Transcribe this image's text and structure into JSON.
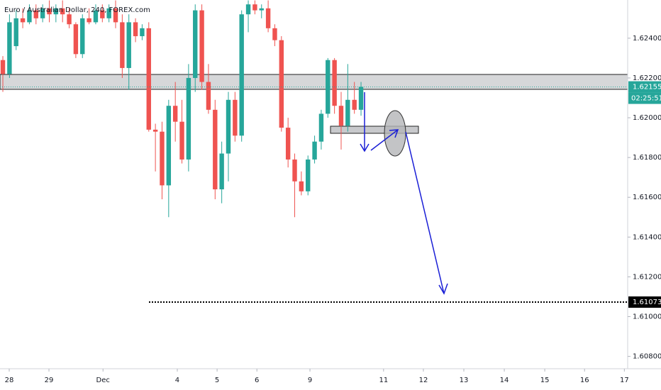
{
  "chart_data": {
    "type": "candlestick",
    "title": "Euro / Australian Dollar, 240, FOREX.com",
    "up_color": "#26a69a",
    "down_color": "#ef5350",
    "x": [
      0,
      1,
      2,
      3,
      4,
      5,
      6,
      7,
      8,
      9,
      10,
      11,
      12,
      13,
      14,
      15,
      16,
      17,
      18,
      19,
      20,
      21,
      22,
      23,
      24,
      25,
      26,
      27,
      28,
      29,
      30,
      31,
      32,
      33,
      34,
      35,
      36,
      37,
      38,
      39,
      40,
      41,
      42,
      43,
      44,
      45,
      46,
      47,
      48,
      49,
      50,
      51,
      52,
      53,
      54
    ],
    "open": [
      1.6229,
      1.6222,
      1.6236,
      1.625,
      1.6248,
      1.6254,
      1.625,
      1.6255,
      1.6252,
      1.6255,
      1.6252,
      1.6247,
      1.6232,
      1.625,
      1.6248,
      1.6254,
      1.625,
      1.6255,
      1.6248,
      1.6225,
      1.6248,
      1.6241,
      1.6245,
      1.6194,
      1.6193,
      1.6166,
      1.6206,
      1.6198,
      1.6179,
      1.622,
      1.6254,
      1.6218,
      1.6204,
      1.6164,
      1.6182,
      1.6209,
      1.6191,
      1.6252,
      1.6257,
      1.6254,
      1.6255,
      1.6245,
      1.6239,
      1.6195,
      1.6179,
      1.6168,
      1.6163,
      1.6179,
      1.6188,
      1.6202,
      1.6229,
      1.6206,
      1.6196,
      1.6209,
      1.6204
    ],
    "high": [
      1.6231,
      1.6252,
      1.6254,
      1.6255,
      1.6257,
      1.6257,
      1.6257,
      1.6259,
      1.6257,
      1.6259,
      1.6255,
      1.6248,
      1.6252,
      1.6255,
      1.6257,
      1.6257,
      1.6257,
      1.6259,
      1.6252,
      1.6252,
      1.625,
      1.6247,
      1.6248,
      1.6197,
      1.6198,
      1.6209,
      1.6218,
      1.6209,
      1.6227,
      1.6257,
      1.6257,
      1.6227,
      1.6209,
      1.6188,
      1.6213,
      1.6213,
      1.6254,
      1.6259,
      1.6259,
      1.6257,
      1.6259,
      1.6247,
      1.6241,
      1.62,
      1.6182,
      1.6173,
      1.6181,
      1.6191,
      1.6204,
      1.623,
      1.623,
      1.6213,
      1.6227,
      1.6218,
      1.6218
    ],
    "low": [
      1.6213,
      1.622,
      1.6234,
      1.6245,
      1.6247,
      1.6247,
      1.6248,
      1.6248,
      1.6248,
      1.6248,
      1.6245,
      1.623,
      1.623,
      1.6247,
      1.6247,
      1.6248,
      1.6248,
      1.6245,
      1.622,
      1.6214,
      1.6238,
      1.6239,
      1.6193,
      1.6173,
      1.6159,
      1.615,
      1.6188,
      1.6177,
      1.6173,
      1.6213,
      1.6214,
      1.6202,
      1.6159,
      1.6157,
      1.6168,
      1.6188,
      1.6188,
      1.6243,
      1.6252,
      1.625,
      1.6243,
      1.6236,
      1.6193,
      1.6175,
      1.615,
      1.6161,
      1.6161,
      1.6177,
      1.6184,
      1.62,
      1.6202,
      1.6184,
      1.6193,
      1.6202,
      1.6201
    ],
    "close": [
      1.6222,
      1.6248,
      1.625,
      1.6248,
      1.6254,
      1.625,
      1.6255,
      1.6252,
      1.6255,
      1.6252,
      1.6247,
      1.6232,
      1.625,
      1.6248,
      1.6254,
      1.625,
      1.6255,
      1.6248,
      1.6225,
      1.6248,
      1.6241,
      1.6245,
      1.6194,
      1.6193,
      1.6166,
      1.6206,
      1.6198,
      1.6179,
      1.622,
      1.6254,
      1.6218,
      1.6204,
      1.6164,
      1.6182,
      1.6209,
      1.6191,
      1.6252,
      1.6257,
      1.6254,
      1.6255,
      1.6245,
      1.6239,
      1.6195,
      1.6179,
      1.6168,
      1.6163,
      1.6179,
      1.6188,
      1.6202,
      1.6229,
      1.6206,
      1.6196,
      1.6209,
      1.6204,
      1.62155
    ],
    "xlim": [
      -0.43,
      94.2
    ],
    "xticks": [
      {
        "value": 0.96,
        "label": "28"
      },
      {
        "value": 6.95,
        "label": "29"
      },
      {
        "value": 15.1,
        "label": "Dec"
      },
      {
        "value": 26.3,
        "label": "4"
      },
      {
        "value": 32.3,
        "label": "5"
      },
      {
        "value": 38.3,
        "label": "6"
      },
      {
        "value": 46.3,
        "label": "9"
      },
      {
        "value": 57.4,
        "label": "11"
      },
      {
        "value": 63.4,
        "label": "12"
      },
      {
        "value": 69.5,
        "label": "13"
      },
      {
        "value": 75.6,
        "label": "14"
      },
      {
        "value": 81.7,
        "label": "15"
      },
      {
        "value": 87.7,
        "label": "16"
      },
      {
        "value": 93.7,
        "label": "17"
      }
    ],
    "ylim": [
      1.60738,
      1.62592
    ],
    "yticks": [
      {
        "value": 1.624,
        "label": "1.62400"
      },
      {
        "value": 1.622,
        "label": "1.62200"
      },
      {
        "value": 1.62,
        "label": "1.62000"
      },
      {
        "value": 1.618,
        "label": "1.61800"
      },
      {
        "value": 1.616,
        "label": "1.61600"
      },
      {
        "value": 1.614,
        "label": "1.61400"
      },
      {
        "value": 1.612,
        "label": "1.61200"
      },
      {
        "value": 1.61,
        "label": "1.61000"
      },
      {
        "value": 1.608,
        "label": "1.60800"
      }
    ],
    "last_price": 1.62155,
    "countdown": "02:25:51",
    "target": 1.61073
  }
}
